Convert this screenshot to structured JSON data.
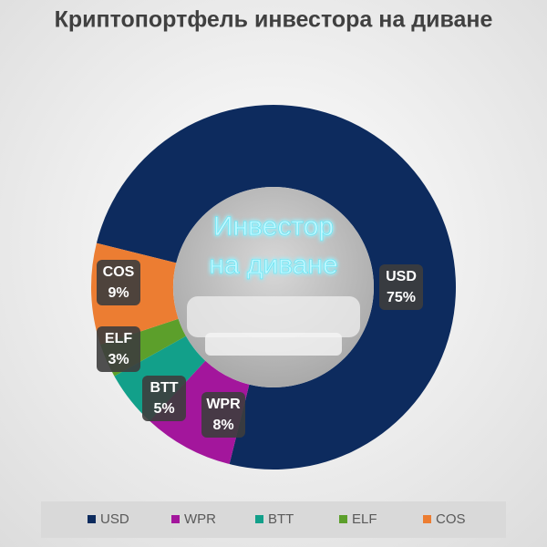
{
  "chart_data": {
    "type": "donut",
    "title": "Криптопортфель инвестора на диване",
    "categories": [
      "USD",
      "WPR",
      "BTT",
      "ELF",
      "COS"
    ],
    "values": [
      75,
      8,
      5,
      3,
      9
    ],
    "value_labels": [
      "75%",
      "8%",
      "5%",
      "3%",
      "9%"
    ],
    "colors": [
      "#0d2b5e",
      "#a3169c",
      "#12a08a",
      "#5c9f2b",
      "#ec7d32"
    ],
    "annotations": [
      "Инвестор",
      "на диване"
    ],
    "legend": "bottom"
  }
}
